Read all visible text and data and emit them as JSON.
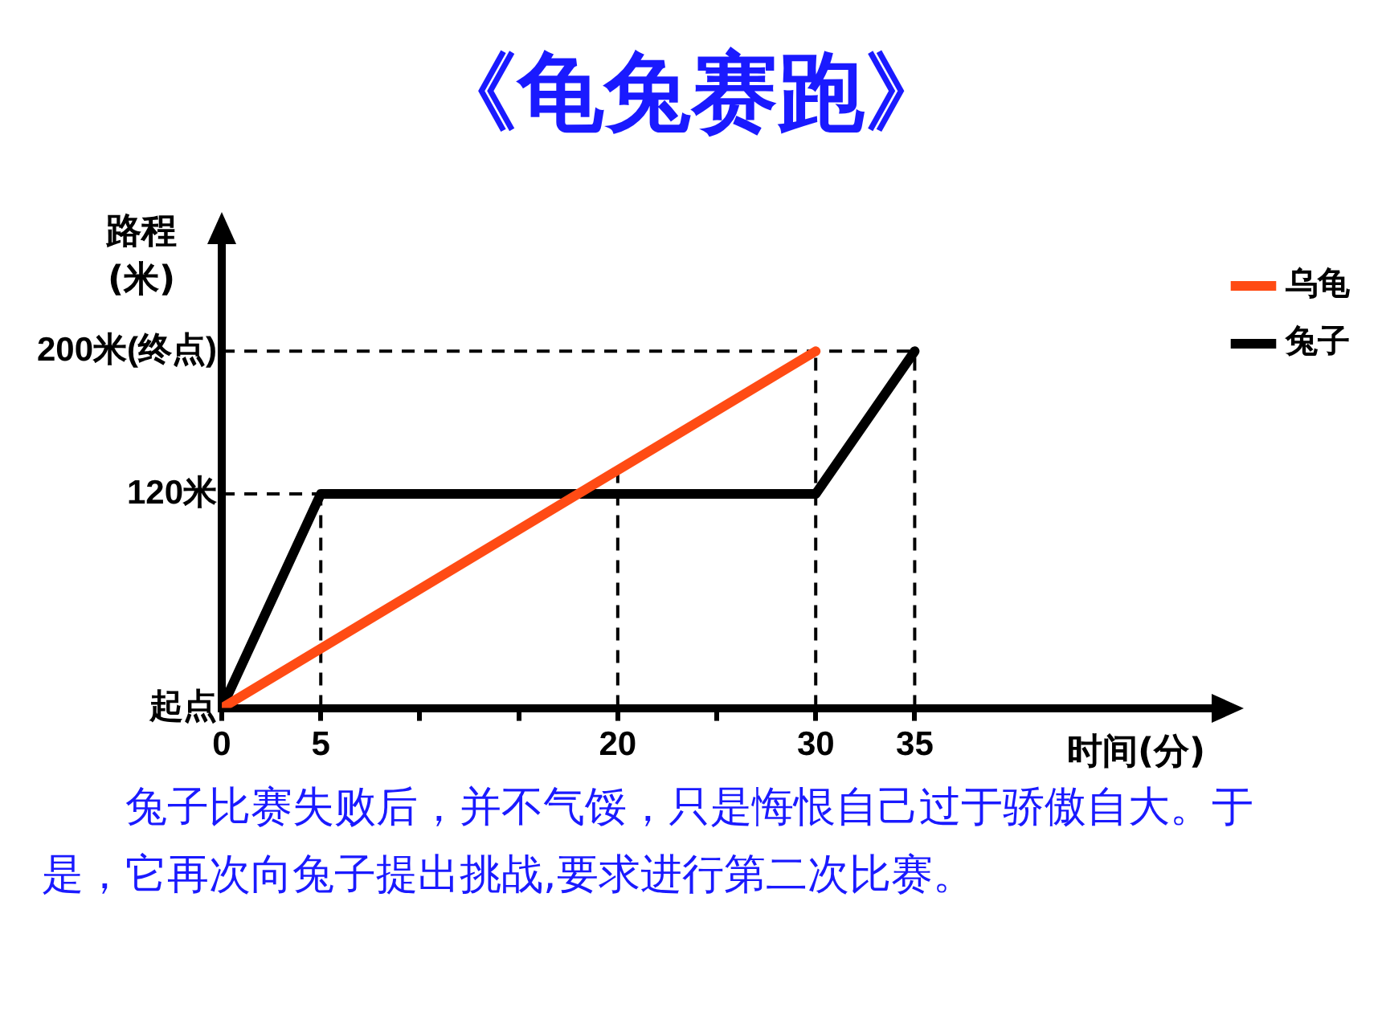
{
  "chart_data": {
    "type": "line",
    "title": "《龟兔赛跑》",
    "xlabel": "时间(分)",
    "ylabel": "路程(米)",
    "annotations": [
      "兔子比赛失败后，并不气馁，只是悔恨自己过于骄傲自大。于是，它再次向兔子提出挑战,要求进行第二次比赛。"
    ],
    "series": [
      {
        "name": "乌龟",
        "color": "#ff4b14",
        "x": [
          0,
          30
        ],
        "values": [
          0,
          200
        ]
      },
      {
        "name": "兔子",
        "color": "#000000",
        "x": [
          0,
          5,
          30,
          35
        ],
        "values": [
          0,
          120,
          120,
          200
        ]
      }
    ],
    "xlim": [
      0,
      50
    ],
    "xticks": [
      0,
      5,
      {
        "value": 10,
        "label": null
      },
      {
        "value": 15,
        "label": null
      },
      20,
      {
        "value": 25,
        "label": null
      },
      30,
      35
    ],
    "ylim": [
      0,
      260
    ],
    "yticks": [
      {
        "value": 0,
        "label": "起点"
      },
      {
        "value": 120,
        "label": "120米"
      },
      {
        "value": 200,
        "label": "200米(终点)"
      }
    ],
    "ref_lines": [
      {
        "axis": "x",
        "value": 5,
        "line_style": "dashed"
      },
      {
        "axis": "x",
        "value": 20,
        "line_style": "dashed"
      },
      {
        "axis": "x",
        "value": 30,
        "line_style": "dashed"
      },
      {
        "axis": "x",
        "value": 35,
        "line_style": "dashed"
      },
      {
        "axis": "y",
        "value": 120,
        "line_style": "dashed"
      },
      {
        "axis": "y",
        "value": 200,
        "line_style": "dashed"
      }
    ],
    "legend": "top right",
    "grid": false,
    "marker": "none",
    "line_style": "solid"
  }
}
